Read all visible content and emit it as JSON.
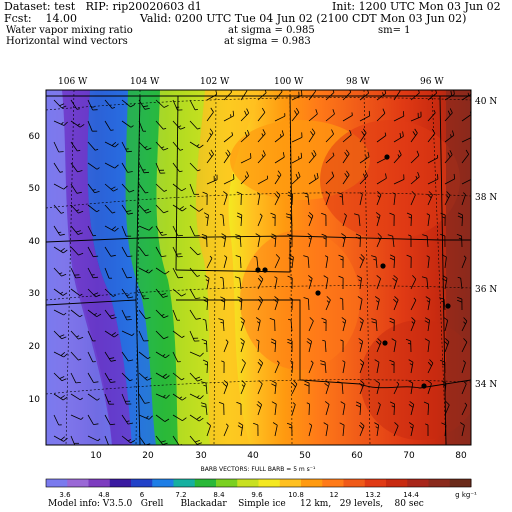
{
  "header": {
    "dataset": "Dataset: test   RIP: rip20020603 d1",
    "init": "Init: 1200 UTC Mon 03 Jun 02",
    "fcst": "Fcst:    14.00",
    "valid": "Valid: 0200 UTC Tue 04 Jun 02 (2100 CDT Mon 03 Jun 02)",
    "field1": "Water vapor mixing ratio",
    "field1_level": "at sigma = 0.985",
    "field1_sm": "sm= 1",
    "field2": "Horizontal wind vectors",
    "field2_level": "at sigma = 0.983"
  },
  "map": {
    "lon_labels": [
      "106 W",
      "104 W",
      "102 W",
      "100 W",
      "98 W",
      "96 W"
    ],
    "lat_labels": [
      "40 N",
      "38 N",
      "36 N",
      "34 N"
    ],
    "x_ticks": [
      "10",
      "20",
      "30",
      "40",
      "50",
      "60",
      "70",
      "80"
    ],
    "y_ticks": [
      "10",
      "20",
      "30",
      "40",
      "50",
      "60"
    ],
    "station_dots": 8
  },
  "barbs_caption": "BARB VECTORS:  FULL BARB = 5 m s⁻¹",
  "colorbar": {
    "labels": [
      "3.6",
      "4.8",
      "6",
      "7.2",
      "8.4",
      "9.6",
      "10.8",
      "12",
      "13.2",
      "14.4"
    ],
    "units": "g kg⁻¹",
    "colors": [
      "#7a7aee",
      "#9a68d6",
      "#7d3cbf",
      "#3a1aa0",
      "#2242c8",
      "#1e7ee6",
      "#16b0a0",
      "#2ab838",
      "#7ad020",
      "#c8e020",
      "#f4e820",
      "#ffc020",
      "#ff9a10",
      "#ff7a18",
      "#f05a18",
      "#e03a14",
      "#c82a10",
      "#a8261a",
      "#8a2a1c",
      "#6a2a1a"
    ]
  },
  "footer": "Model info: V3.5.0   Grell      Blackadar    Simple ice     12 km,   29 levels,    80 sec"
}
